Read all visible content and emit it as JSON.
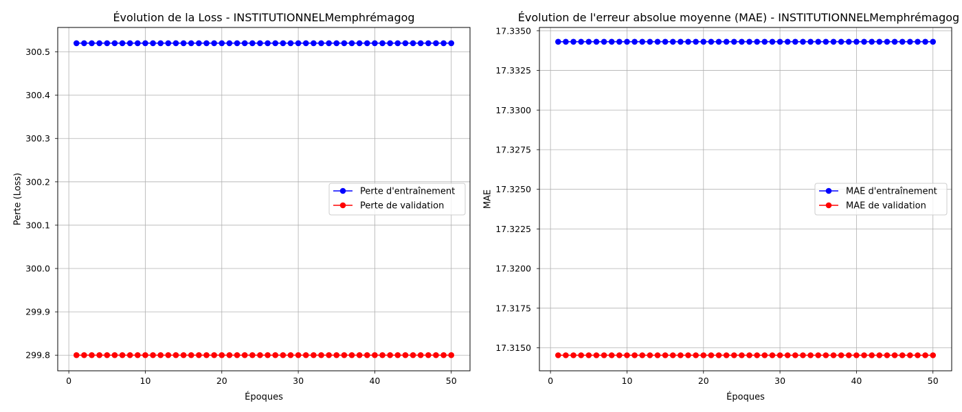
{
  "chart_data": [
    {
      "type": "line",
      "title": "Évolution de la Loss - INSTITUTIONNELMemphrémagog",
      "xlabel": "Époques",
      "ylabel": "Perte (Loss)",
      "xlim": [
        -1.45,
        52.45
      ],
      "ylim": [
        299.7639,
        300.5563
      ],
      "xticks": [
        0,
        10,
        20,
        30,
        40,
        50
      ],
      "yticks": [
        299.8,
        299.9,
        300.0,
        300.1,
        300.2,
        300.3,
        300.4,
        300.5
      ],
      "ytick_labels": [
        "299.8",
        "299.9",
        "300.0",
        "300.1",
        "300.2",
        "300.3",
        "300.4",
        "300.5"
      ],
      "grid": true,
      "legend_position": "center-right",
      "x": [
        1,
        2,
        3,
        4,
        5,
        6,
        7,
        8,
        9,
        10,
        11,
        12,
        13,
        14,
        15,
        16,
        17,
        18,
        19,
        20,
        21,
        22,
        23,
        24,
        25,
        26,
        27,
        28,
        29,
        30,
        31,
        32,
        33,
        34,
        35,
        36,
        37,
        38,
        39,
        40,
        41,
        42,
        43,
        44,
        45,
        46,
        47,
        48,
        49,
        50
      ],
      "series": [
        {
          "name": "Perte d'entraînement",
          "color": "#0000ff",
          "marker": "circle",
          "values": [
            300.52,
            300.52,
            300.52,
            300.52,
            300.52,
            300.52,
            300.52,
            300.52,
            300.52,
            300.52,
            300.52,
            300.52,
            300.52,
            300.52,
            300.52,
            300.52,
            300.52,
            300.52,
            300.52,
            300.52,
            300.52,
            300.52,
            300.52,
            300.52,
            300.52,
            300.52,
            300.52,
            300.52,
            300.52,
            300.52,
            300.52,
            300.52,
            300.52,
            300.52,
            300.52,
            300.52,
            300.52,
            300.52,
            300.52,
            300.52,
            300.52,
            300.52,
            300.52,
            300.52,
            300.52,
            300.52,
            300.52,
            300.52,
            300.52,
            300.52
          ]
        },
        {
          "name": "Perte de validation",
          "color": "#ff0000",
          "marker": "circle",
          "values": [
            299.8,
            299.8,
            299.8,
            299.8,
            299.8,
            299.8,
            299.8,
            299.8,
            299.8,
            299.8,
            299.8,
            299.8,
            299.8,
            299.8,
            299.8,
            299.8,
            299.8,
            299.8,
            299.8,
            299.8,
            299.8,
            299.8,
            299.8,
            299.8,
            299.8,
            299.8,
            299.8,
            299.8,
            299.8,
            299.8,
            299.8,
            299.8,
            299.8,
            299.8,
            299.8,
            299.8,
            299.8,
            299.8,
            299.8,
            299.8,
            299.8,
            299.8,
            299.8,
            299.8,
            299.8,
            299.8,
            299.8,
            299.8,
            299.8,
            299.8
          ]
        }
      ]
    },
    {
      "type": "line",
      "title": "Évolution de l'erreur absolue moyenne (MAE) - INSTITUTIONNELMemphrémagog",
      "xlabel": "Époques",
      "ylabel": "MAE",
      "xlim": [
        -1.45,
        52.45
      ],
      "ylim": [
        17.31355,
        17.33521
      ],
      "xticks": [
        0,
        10,
        20,
        30,
        40,
        50
      ],
      "yticks": [
        17.315,
        17.3175,
        17.32,
        17.3225,
        17.325,
        17.3275,
        17.33,
        17.3325,
        17.335
      ],
      "ytick_labels": [
        "17.3150",
        "17.3175",
        "17.3200",
        "17.3225",
        "17.3250",
        "17.3275",
        "17.3300",
        "17.3325",
        "17.3350"
      ],
      "grid": true,
      "legend_position": "center-right",
      "x": [
        1,
        2,
        3,
        4,
        5,
        6,
        7,
        8,
        9,
        10,
        11,
        12,
        13,
        14,
        15,
        16,
        17,
        18,
        19,
        20,
        21,
        22,
        23,
        24,
        25,
        26,
        27,
        28,
        29,
        30,
        31,
        32,
        33,
        34,
        35,
        36,
        37,
        38,
        39,
        40,
        41,
        42,
        43,
        44,
        45,
        46,
        47,
        48,
        49,
        50
      ],
      "series": [
        {
          "name": "MAE d'entraînement",
          "color": "#0000ff",
          "marker": "circle",
          "values": [
            17.33431,
            17.33431,
            17.33431,
            17.33431,
            17.33431,
            17.33431,
            17.33431,
            17.33431,
            17.33431,
            17.33431,
            17.33431,
            17.33431,
            17.33431,
            17.33431,
            17.33431,
            17.33431,
            17.33431,
            17.33431,
            17.33431,
            17.33431,
            17.33431,
            17.33431,
            17.33431,
            17.33431,
            17.33431,
            17.33431,
            17.33431,
            17.33431,
            17.33431,
            17.33431,
            17.33431,
            17.33431,
            17.33431,
            17.33431,
            17.33431,
            17.33431,
            17.33431,
            17.33431,
            17.33431,
            17.33431,
            17.33431,
            17.33431,
            17.33431,
            17.33431,
            17.33431,
            17.33431,
            17.33431,
            17.33431,
            17.33431,
            17.33431
          ]
        },
        {
          "name": "MAE de validation",
          "color": "#ff0000",
          "marker": "circle",
          "values": [
            17.31453,
            17.31453,
            17.31453,
            17.31453,
            17.31453,
            17.31453,
            17.31453,
            17.31453,
            17.31453,
            17.31453,
            17.31453,
            17.31453,
            17.31453,
            17.31453,
            17.31453,
            17.31453,
            17.31453,
            17.31453,
            17.31453,
            17.31453,
            17.31453,
            17.31453,
            17.31453,
            17.31453,
            17.31453,
            17.31453,
            17.31453,
            17.31453,
            17.31453,
            17.31453,
            17.31453,
            17.31453,
            17.31453,
            17.31453,
            17.31453,
            17.31453,
            17.31453,
            17.31453,
            17.31453,
            17.31453,
            17.31453,
            17.31453,
            17.31453,
            17.31453,
            17.31453,
            17.31453,
            17.31453,
            17.31453,
            17.31453,
            17.31453
          ]
        }
      ]
    }
  ]
}
